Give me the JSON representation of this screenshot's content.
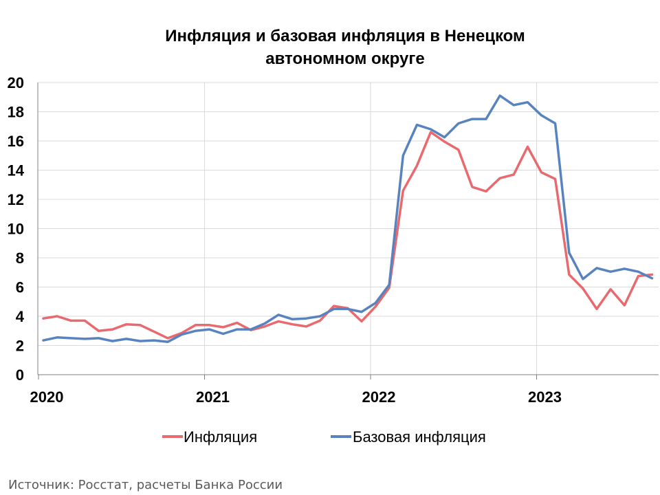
{
  "chart_data": {
    "type": "line",
    "title_lines": [
      "Инфляция и базовая инфляция в Ненецком",
      "автономном округе"
    ],
    "xlabel": "",
    "ylabel": "",
    "ylim": [
      0,
      20
    ],
    "yticks": [
      0,
      2,
      4,
      6,
      8,
      10,
      12,
      14,
      16,
      18,
      20
    ],
    "x_tick_labels": [
      "2020",
      "2021",
      "2022",
      "2023"
    ],
    "x": [
      "2020-01",
      "2020-02",
      "2020-03",
      "2020-04",
      "2020-05",
      "2020-06",
      "2020-07",
      "2020-08",
      "2020-09",
      "2020-10",
      "2020-11",
      "2020-12",
      "2021-01",
      "2021-02",
      "2021-03",
      "2021-04",
      "2021-05",
      "2021-06",
      "2021-07",
      "2021-08",
      "2021-09",
      "2021-10",
      "2021-11",
      "2021-12",
      "2022-01",
      "2022-02",
      "2022-03",
      "2022-04",
      "2022-05",
      "2022-06",
      "2022-07",
      "2022-08",
      "2022-09",
      "2022-10",
      "2022-11",
      "2022-12",
      "2023-01",
      "2023-02",
      "2023-03",
      "2023-04",
      "2023-05",
      "2023-06",
      "2023-07",
      "2023-08",
      "2023-09"
    ],
    "grid": true,
    "legend_position": "bottom",
    "series": [
      {
        "name": "Инфляция",
        "color": "#E8696E",
        "values": [
          3.85,
          4.0,
          3.7,
          3.7,
          3.0,
          3.1,
          3.45,
          3.4,
          2.95,
          2.5,
          2.85,
          3.4,
          3.4,
          3.25,
          3.55,
          3.05,
          3.3,
          3.65,
          3.45,
          3.3,
          3.7,
          4.7,
          4.55,
          3.65,
          4.65,
          5.95,
          12.6,
          14.3,
          16.6,
          15.95,
          15.4,
          12.85,
          12.55,
          13.45,
          13.7,
          15.6,
          13.85,
          13.4,
          6.85,
          5.9,
          4.5,
          5.85,
          4.75,
          6.75,
          6.85
        ]
      },
      {
        "name": "Базовая инфляция",
        "color": "#5883BF",
        "values": [
          2.35,
          2.55,
          2.5,
          2.45,
          2.5,
          2.3,
          2.45,
          2.3,
          2.35,
          2.25,
          2.75,
          3.0,
          3.1,
          2.8,
          3.1,
          3.1,
          3.5,
          4.1,
          3.8,
          3.85,
          4.0,
          4.5,
          4.5,
          4.3,
          4.9,
          6.15,
          15.0,
          17.1,
          16.8,
          16.25,
          17.2,
          17.5,
          17.5,
          19.1,
          18.45,
          18.65,
          17.75,
          17.2,
          8.35,
          6.55,
          7.3,
          7.05,
          7.25,
          7.05,
          6.6
        ]
      }
    ]
  },
  "source": "Источник: Росстат, расчеты Банка России"
}
